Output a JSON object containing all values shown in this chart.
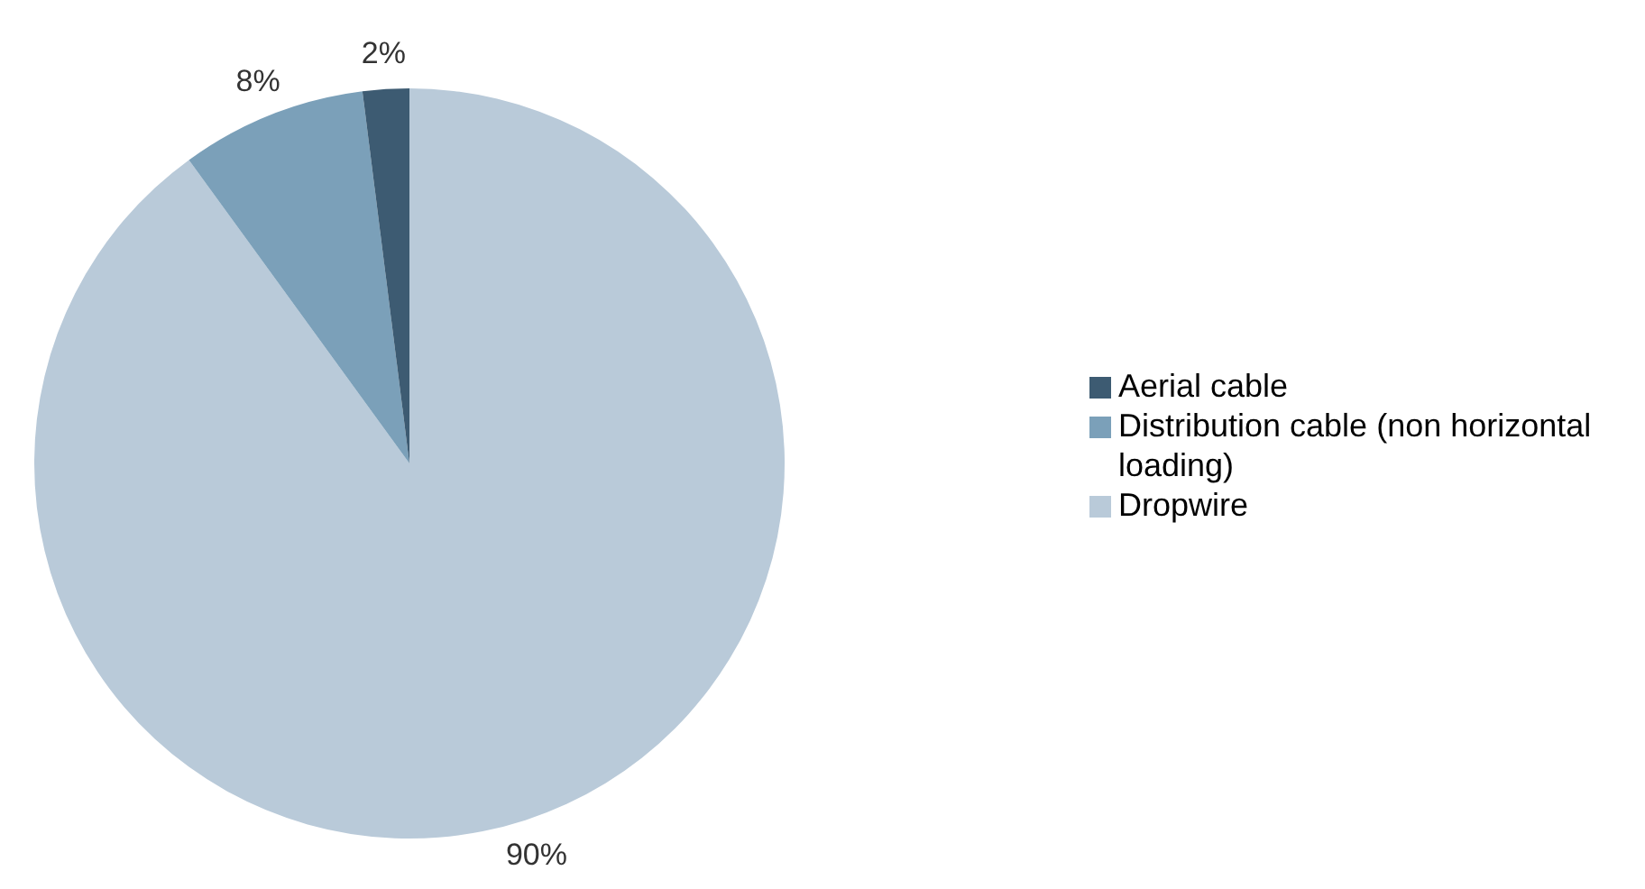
{
  "chart_data": {
    "type": "pie",
    "categories": [
      "Dropwire",
      "Distribution cable (non horizontal loading)",
      "Aerial cable"
    ],
    "values": [
      90,
      8,
      2
    ],
    "colors": [
      "#b9cad9",
      "#7ba0b9",
      "#3d5b72"
    ],
    "value_labels": [
      "90%",
      "8%",
      "2%"
    ],
    "legend": "right"
  }
}
